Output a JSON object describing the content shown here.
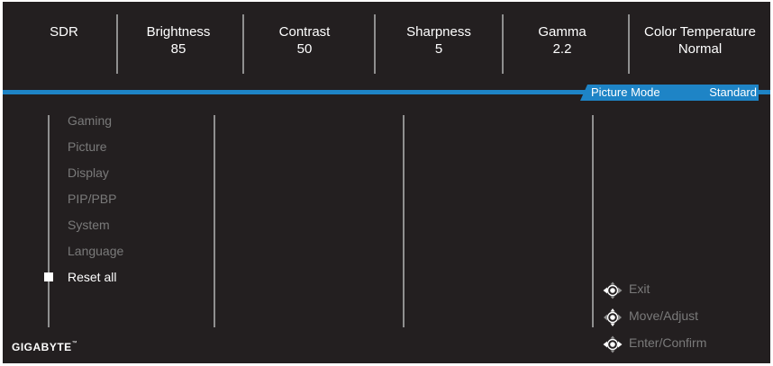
{
  "top_bar": [
    {
      "label": "SDR",
      "value": ""
    },
    {
      "label": "Brightness",
      "value": "85"
    },
    {
      "label": "Contrast",
      "value": "50"
    },
    {
      "label": "Sharpness",
      "value": "5"
    },
    {
      "label": "Gamma",
      "value": "2.2"
    },
    {
      "label": "Color Temperature",
      "value": "Normal"
    }
  ],
  "mode_tab": {
    "label": "Picture Mode",
    "value": "Standard"
  },
  "menu": {
    "items": [
      "Gaming",
      "Picture",
      "Display",
      "PIP/PBP",
      "System",
      "Language",
      "Reset all"
    ],
    "selected": "Reset all"
  },
  "hints": {
    "exit": "Exit",
    "move_adjust": "Move/Adjust",
    "enter_confirm": "Enter/Confirm"
  },
  "brand": {
    "name": "GIGABYTE",
    "mark": "™"
  },
  "colors": {
    "background": "#231f20",
    "accent": "#1e84c6",
    "text": "#ffffff",
    "muted": "#7a7a7a"
  }
}
